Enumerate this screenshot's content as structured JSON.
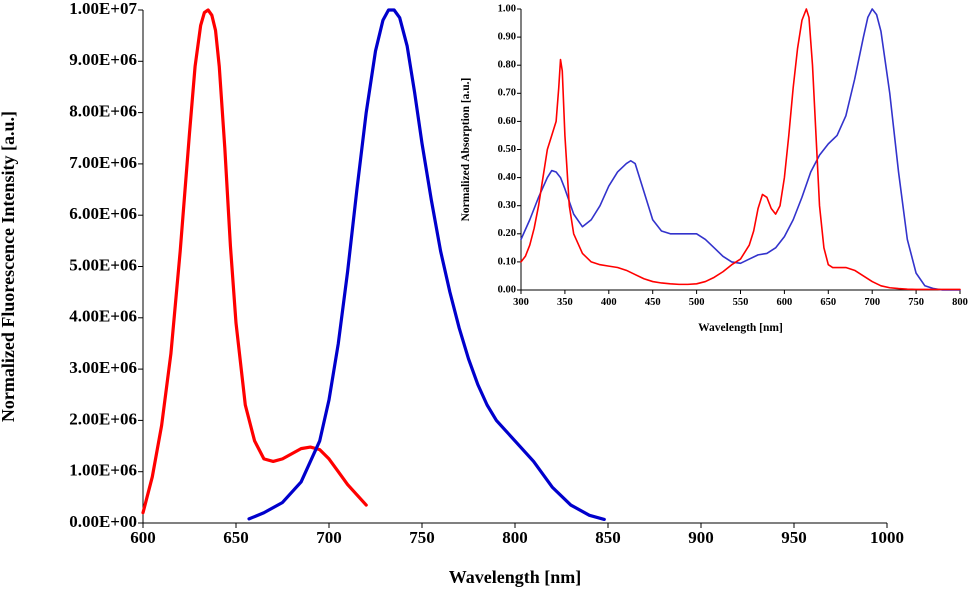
{
  "chart_data": [
    {
      "type": "line",
      "title": "",
      "xlabel": "Wavelength [nm]",
      "ylabel": "Normalized Fluorescence Intensity [a.u.]",
      "xlim": [
        600,
        1000
      ],
      "ylim": [
        0,
        10000000
      ],
      "x_ticks": [
        600,
        650,
        700,
        750,
        800,
        850,
        900,
        950,
        1000
      ],
      "x_tick_labels": [
        "600",
        "650",
        "700",
        "750",
        "800",
        "850",
        "900",
        "950",
        "1000"
      ],
      "y_ticks": [
        0,
        1000000,
        2000000,
        3000000,
        4000000,
        5000000,
        6000000,
        7000000,
        8000000,
        9000000,
        10000000
      ],
      "y_tick_labels": [
        "0.00E+00",
        "1.00E+06",
        "2.00E+06",
        "3.00E+06",
        "4.00E+06",
        "5.00E+06",
        "6.00E+06",
        "7.00E+06",
        "8.00E+06",
        "9.00E+06",
        "1.00E+07"
      ],
      "grid": false,
      "series": [
        {
          "name": "red",
          "color": "#ff0000",
          "x": [
            600,
            605,
            610,
            615,
            620,
            625,
            628,
            631,
            633,
            635,
            637,
            639,
            641,
            644,
            647,
            650,
            655,
            660,
            665,
            670,
            675,
            680,
            685,
            690,
            695,
            700,
            705,
            710,
            715,
            720
          ],
          "y": [
            200000,
            900000,
            1900000,
            3300000,
            5300000,
            7600000,
            8900000,
            9700000,
            9950000,
            10000000,
            9900000,
            9600000,
            8900000,
            7300000,
            5400000,
            3900000,
            2300000,
            1600000,
            1250000,
            1200000,
            1250000,
            1350000,
            1450000,
            1480000,
            1430000,
            1250000,
            1000000,
            750000,
            550000,
            350000
          ]
        },
        {
          "name": "blue",
          "color": "#0000cc",
          "x": [
            657,
            665,
            675,
            685,
            695,
            700,
            705,
            710,
            715,
            720,
            725,
            729,
            732,
            735,
            738,
            742,
            746,
            750,
            755,
            760,
            765,
            770,
            775,
            780,
            785,
            790,
            795,
            800,
            810,
            820,
            830,
            840,
            848
          ],
          "y": [
            80000,
            200000,
            400000,
            800000,
            1600000,
            2400000,
            3500000,
            4900000,
            6500000,
            8000000,
            9200000,
            9800000,
            10000000,
            10000000,
            9850000,
            9300000,
            8400000,
            7400000,
            6300000,
            5300000,
            4500000,
            3800000,
            3200000,
            2700000,
            2300000,
            2000000,
            1800000,
            1600000,
            1200000,
            700000,
            350000,
            150000,
            70000
          ]
        }
      ]
    },
    {
      "type": "line",
      "title": "",
      "xlabel": "Wavelength  [nm]",
      "ylabel": "Normalized Absorption  [a.u.]",
      "xlim": [
        300,
        800
      ],
      "ylim": [
        0,
        1
      ],
      "x_ticks": [
        300,
        350,
        400,
        450,
        500,
        550,
        600,
        650,
        700,
        750,
        800
      ],
      "x_tick_labels": [
        "300",
        "350",
        "400",
        "450",
        "500",
        "550",
        "600",
        "650",
        "700",
        "750",
        "800"
      ],
      "y_ticks": [
        0,
        0.1,
        0.2,
        0.3,
        0.4,
        0.5,
        0.6,
        0.7,
        0.8,
        0.9,
        1.0
      ],
      "y_tick_labels": [
        "0.00",
        "0.10",
        "0.20",
        "0.30",
        "0.40",
        "0.50",
        "0.60",
        "0.70",
        "0.80",
        "0.90",
        "1.00"
      ],
      "grid": false,
      "series": [
        {
          "name": "blue",
          "color": "#3333cc",
          "x": [
            300,
            310,
            320,
            330,
            335,
            340,
            345,
            350,
            360,
            370,
            380,
            390,
            400,
            410,
            420,
            425,
            430,
            440,
            450,
            460,
            470,
            480,
            490,
            500,
            510,
            520,
            530,
            540,
            550,
            560,
            570,
            580,
            590,
            600,
            610,
            620,
            630,
            640,
            650,
            660,
            670,
            680,
            690,
            695,
            700,
            705,
            710,
            720,
            730,
            740,
            750,
            760,
            770,
            780,
            790,
            800
          ],
          "y": [
            0.18,
            0.25,
            0.33,
            0.4,
            0.425,
            0.42,
            0.4,
            0.36,
            0.27,
            0.225,
            0.25,
            0.3,
            0.37,
            0.42,
            0.45,
            0.46,
            0.45,
            0.35,
            0.25,
            0.21,
            0.2,
            0.2,
            0.2,
            0.2,
            0.18,
            0.15,
            0.12,
            0.1,
            0.095,
            0.11,
            0.125,
            0.13,
            0.15,
            0.19,
            0.25,
            0.33,
            0.42,
            0.48,
            0.52,
            0.55,
            0.62,
            0.75,
            0.9,
            0.97,
            1.0,
            0.98,
            0.92,
            0.7,
            0.42,
            0.18,
            0.06,
            0.015,
            0.005,
            0.0,
            0.0,
            0.0
          ]
        },
        {
          "name": "red",
          "color": "#ff0000",
          "x": [
            300,
            305,
            310,
            315,
            320,
            325,
            330,
            335,
            340,
            343,
            345,
            347,
            350,
            355,
            360,
            370,
            380,
            390,
            400,
            410,
            420,
            430,
            440,
            450,
            460,
            470,
            480,
            490,
            500,
            510,
            520,
            530,
            540,
            550,
            560,
            565,
            570,
            575,
            580,
            585,
            590,
            595,
            600,
            605,
            610,
            615,
            620,
            625,
            628,
            632,
            636,
            640,
            645,
            650,
            655,
            660,
            670,
            680,
            690,
            700,
            710,
            720,
            730,
            740,
            750,
            760,
            770,
            780,
            790,
            800
          ],
          "y": [
            0.1,
            0.12,
            0.16,
            0.22,
            0.3,
            0.4,
            0.5,
            0.55,
            0.6,
            0.72,
            0.82,
            0.78,
            0.55,
            0.3,
            0.2,
            0.13,
            0.1,
            0.09,
            0.085,
            0.08,
            0.07,
            0.055,
            0.04,
            0.03,
            0.025,
            0.022,
            0.02,
            0.02,
            0.022,
            0.03,
            0.045,
            0.065,
            0.09,
            0.11,
            0.16,
            0.21,
            0.29,
            0.34,
            0.33,
            0.29,
            0.27,
            0.3,
            0.4,
            0.55,
            0.72,
            0.86,
            0.96,
            1.0,
            0.97,
            0.8,
            0.55,
            0.3,
            0.15,
            0.09,
            0.08,
            0.08,
            0.08,
            0.07,
            0.05,
            0.03,
            0.015,
            0.008,
            0.005,
            0.003,
            0.002,
            0.002,
            0.002,
            0.002,
            0.002,
            0.002
          ]
        }
      ]
    }
  ]
}
